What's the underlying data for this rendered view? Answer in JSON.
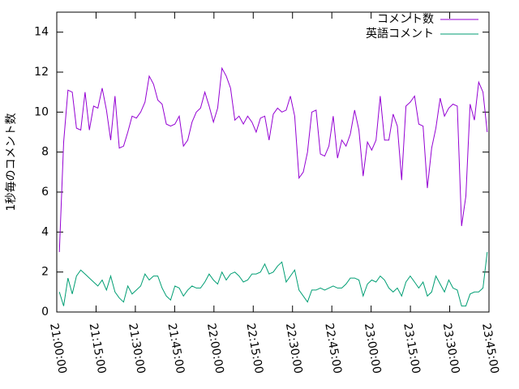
{
  "chart_data": {
    "type": "line",
    "ylabel": "1秒毎のコメント数",
    "x": [
      "21:01:00",
      "21:02:38",
      "21:04:16",
      "21:05:54",
      "21:07:32",
      "21:09:10",
      "21:10:48",
      "21:12:26",
      "21:14:04",
      "21:15:42",
      "21:17:20",
      "21:18:58",
      "21:20:36",
      "21:22:14",
      "21:23:52",
      "21:25:30",
      "21:27:08",
      "21:28:46",
      "21:30:24",
      "21:32:02",
      "21:33:40",
      "21:35:18",
      "21:36:56",
      "21:38:34",
      "21:40:12",
      "21:41:50",
      "21:43:28",
      "21:45:06",
      "21:46:44",
      "21:48:22",
      "21:50:00",
      "21:51:38",
      "21:53:16",
      "21:54:54",
      "21:56:32",
      "21:58:10",
      "21:59:48",
      "22:01:26",
      "22:03:04",
      "22:04:42",
      "22:06:20",
      "22:07:58",
      "22:09:36",
      "22:11:14",
      "22:12:52",
      "22:14:30",
      "22:16:08",
      "22:17:46",
      "22:19:24",
      "22:21:02",
      "22:22:40",
      "22:24:18",
      "22:25:56",
      "22:27:34",
      "22:29:12",
      "22:30:50",
      "22:32:28",
      "22:34:06",
      "22:35:44",
      "22:37:22",
      "22:39:00",
      "22:40:38",
      "22:42:16",
      "22:43:54",
      "22:45:32",
      "22:47:10",
      "22:48:48",
      "22:50:26",
      "22:52:04",
      "22:53:42",
      "22:55:20",
      "22:56:58",
      "22:58:36",
      "23:00:14",
      "23:01:52",
      "23:03:30",
      "23:05:08",
      "23:06:46",
      "23:08:24",
      "23:10:02",
      "23:11:40",
      "23:13:18",
      "23:14:56",
      "23:16:34",
      "23:18:12",
      "23:19:50",
      "23:21:28",
      "23:23:06",
      "23:24:44",
      "23:26:22",
      "23:28:00",
      "23:29:38",
      "23:31:16",
      "23:32:54",
      "23:34:32",
      "23:36:10",
      "23:37:48",
      "23:39:26",
      "23:41:04",
      "23:42:42",
      "23:44:20"
    ],
    "series": [
      {
        "name": "コメント数",
        "color": "#9400d3",
        "values": [
          3,
          8.5,
          11.1,
          11.0,
          9.2,
          9.1,
          11.0,
          9.1,
          10.3,
          10.2,
          11.2,
          10.1,
          8.6,
          10.8,
          8.2,
          8.3,
          9.0,
          9.8,
          9.7,
          10.0,
          10.5,
          11.8,
          11.4,
          10.6,
          10.4,
          9.4,
          9.3,
          9.4,
          9.8,
          8.3,
          8.6,
          9.5,
          10.0,
          10.2,
          11.0,
          10.3,
          9.5,
          10.2,
          12.2,
          11.8,
          11.2,
          9.6,
          9.8,
          9.4,
          9.8,
          9.5,
          9.0,
          9.7,
          9.8,
          8.6,
          9.9,
          10.2,
          10.0,
          10.1,
          10.8,
          9.8,
          6.7,
          7.0,
          8.0,
          10.0,
          10.1,
          7.9,
          7.8,
          8.3,
          9.8,
          7.7,
          8.6,
          8.3,
          8.9,
          10.1,
          9.1,
          6.8,
          8.5,
          8.1,
          8.6,
          10.8,
          8.6,
          8.6,
          9.9,
          9.3,
          6.6,
          10.3,
          10.5,
          10.8,
          9.4,
          9.3,
          6.2,
          8.2,
          9.2,
          10.7,
          9.8,
          10.2,
          10.4,
          10.3,
          4.3,
          5.8,
          10.4,
          9.6,
          11.5,
          11.0,
          9.0
        ]
      },
      {
        "name": "英語コメント",
        "color": "#009e73",
        "values": [
          1.0,
          0.3,
          1.7,
          0.9,
          1.8,
          2.1,
          1.9,
          1.7,
          1.5,
          1.3,
          1.6,
          1.1,
          1.8,
          1.0,
          0.7,
          0.5,
          1.3,
          0.9,
          1.1,
          1.3,
          1.9,
          1.6,
          1.8,
          1.8,
          1.2,
          0.8,
          0.6,
          1.3,
          1.2,
          0.8,
          1.1,
          1.3,
          1.2,
          1.2,
          1.5,
          1.9,
          1.6,
          1.4,
          2.0,
          1.6,
          1.9,
          2.0,
          1.8,
          1.5,
          1.6,
          1.9,
          1.9,
          2.0,
          2.4,
          1.9,
          2.0,
          2.3,
          2.5,
          1.5,
          1.8,
          2.1,
          1.1,
          0.8,
          0.5,
          1.1,
          1.1,
          1.2,
          1.1,
          1.2,
          1.3,
          1.2,
          1.2,
          1.4,
          1.7,
          1.7,
          1.6,
          0.8,
          1.4,
          1.6,
          1.5,
          1.8,
          1.6,
          1.2,
          1.0,
          1.2,
          0.8,
          1.5,
          1.8,
          1.5,
          1.2,
          1.5,
          0.8,
          1.0,
          1.8,
          1.4,
          1.0,
          1.6,
          1.2,
          1.1,
          0.3,
          0.3,
          0.9,
          1.0,
          1.0,
          1.2,
          3.0
        ]
      }
    ],
    "xlim": [
      "21:00:00",
      "23:45:00"
    ],
    "xticks": [
      "21:00:00",
      "21:15:00",
      "21:30:00",
      "21:45:00",
      "22:00:00",
      "22:15:00",
      "22:30:00",
      "22:45:00",
      "23:00:00",
      "23:15:00",
      "23:30:00",
      "23:45:00"
    ],
    "ylim": [
      0,
      15
    ],
    "yticks": [
      0,
      2,
      4,
      6,
      8,
      10,
      12,
      14
    ],
    "legend": "top-right"
  }
}
